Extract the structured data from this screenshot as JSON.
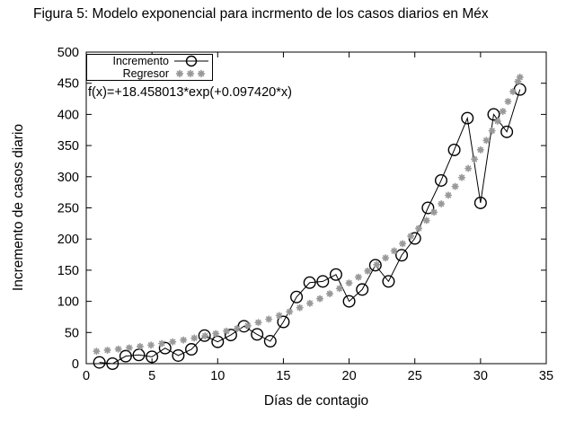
{
  "title": "Figura 5: Modelo exponencial para incrmento de los casos diarios en Méx",
  "annotation": "f(x)=+18.458013*exp(+0.097420*x)",
  "legend": {
    "position": "top-left",
    "items": [
      {
        "label": "Incremento",
        "marker": "open-circle-with-line"
      },
      {
        "label": "Regresor",
        "marker": "asterisks"
      }
    ]
  },
  "colors": {
    "series": "#000000",
    "regressor": "#999999",
    "background": "#ffffff"
  },
  "chart_data": {
    "type": "line",
    "title": "Figura 5: Modelo exponencial para incrmento de los casos diarios en Méx",
    "xlabel": "Días de contagio",
    "ylabel": "Incremento de casos diario",
    "xlim": [
      0,
      35
    ],
    "ylim": [
      0,
      500
    ],
    "x_ticks": [
      0,
      5,
      10,
      15,
      20,
      25,
      30,
      35
    ],
    "y_ticks": [
      0,
      50,
      100,
      150,
      200,
      250,
      300,
      350,
      400,
      450,
      500
    ],
    "grid": false,
    "legend_position": "top-left",
    "series": [
      {
        "name": "Incremento",
        "style": "linespoints",
        "marker": "open-circle",
        "x": [
          1,
          2,
          3,
          4,
          5,
          6,
          7,
          8,
          9,
          10,
          11,
          12,
          13,
          14,
          15,
          16,
          17,
          18,
          19,
          20,
          21,
          22,
          23,
          24,
          25,
          26,
          27,
          28,
          29,
          30,
          31,
          32,
          33
        ],
        "values": [
          2,
          0,
          12,
          14,
          11,
          25,
          13,
          23,
          45,
          35,
          46,
          60,
          47,
          36,
          67,
          107,
          130,
          132,
          143,
          100,
          119,
          158,
          132,
          174,
          201,
          250,
          294,
          343,
          394,
          258,
          400,
          372,
          440
        ]
      },
      {
        "name": "Regresor",
        "style": "points",
        "marker": "asterisk",
        "model": "f(x)=+18.458013*exp(+0.097420*x)",
        "amplitude": 18.458013,
        "rate": 0.09742,
        "x_range": [
          0.78,
          33
        ]
      }
    ]
  }
}
